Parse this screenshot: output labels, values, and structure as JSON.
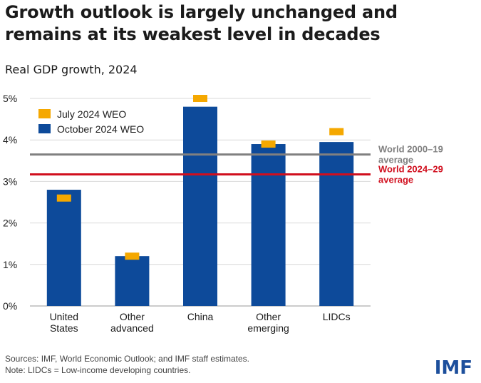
{
  "header": {
    "title_line1": "Growth outlook is largely unchanged and",
    "title_line2": "remains at its weakest level in decades",
    "subtitle": "Real GDP growth, 2024"
  },
  "chart_data": {
    "type": "bar",
    "title": "Growth outlook is largely unchanged and remains at its weakest level in decades",
    "subtitle": "Real GDP growth, 2024",
    "categories": [
      [
        "United",
        "States"
      ],
      [
        "Other",
        "advanced"
      ],
      [
        "China"
      ],
      [
        "Other",
        "emerging"
      ],
      [
        "LIDCs"
      ]
    ],
    "series": [
      {
        "name": "October 2024 WEO",
        "type": "bar",
        "color": "#0d4a9a",
        "values": [
          2.8,
          1.2,
          4.8,
          3.9,
          3.95
        ]
      },
      {
        "name": "July 2024 WEO",
        "type": "marker",
        "color": "#f5a800",
        "values": [
          2.6,
          1.2,
          5.0,
          3.9,
          4.2
        ]
      }
    ],
    "reference_lines": [
      {
        "label": [
          "World 2000–19",
          "average"
        ],
        "value": 3.65,
        "color": "#808080"
      },
      {
        "label": [
          "World 2024–29",
          "average"
        ],
        "value": 3.17,
        "color": "#d10f1e"
      }
    ],
    "yticks": [
      "0%",
      "1%",
      "2%",
      "3%",
      "4%",
      "5%"
    ],
    "ylim": [
      0,
      5
    ],
    "grid": true,
    "legend_position": "top-left"
  },
  "footer": {
    "sources": "Sources: IMF, World Economic Outlook; and IMF staff estimates.",
    "note": "Note: LIDCs = Low-income developing countries."
  },
  "brand": {
    "logo_text": "IMF",
    "color": "#1d4f9c"
  }
}
